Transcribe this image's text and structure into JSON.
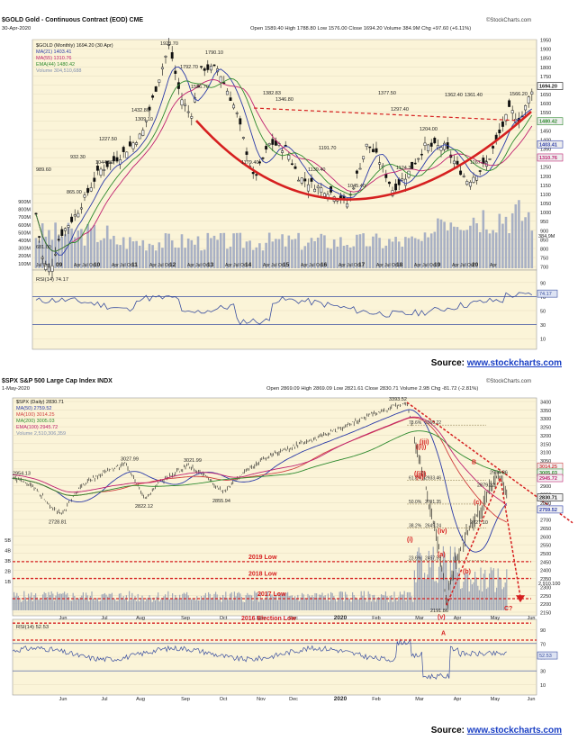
{
  "colors": {
    "panel_bg": "#f4ecd0",
    "chart_bg": "#fbf4d8",
    "up": "#111111",
    "down": "#111111",
    "red": "#d62020",
    "rsi": "#3a4fa0",
    "volume": "#a0a8b8",
    "ma50": "#2a3aa8",
    "ma200": "#2e8a2e",
    "ema": "#c02070"
  },
  "gold": {
    "title": "$GOLD Gold - Continuous Contract (EOD) CME",
    "date": "30-Apr-2020",
    "ohlc": "Open 1589.40  High 1788.80  Low 1576.00  Close 1694.20  Volume 384.9M  Chg +97.60 (+6.11%)",
    "legend": [
      "$GOLD (Monthly) 1694.20 (30 Apr)",
      "MA(21) 1403.41",
      "MA(55) 1310.76",
      "EMA(44) 1480.42",
      "Volume 304,510,688"
    ],
    "watermark": "©StockCharts.com",
    "price_labels": [
      "1923.70",
      "1792.70",
      "1790.10",
      "1526.70",
      "1432.80",
      "1309.10",
      "1227.50",
      "1044.80",
      "932.30",
      "865.00",
      "989.60",
      "681.00",
      "1382.83",
      "1346.80",
      "1179.40",
      "1191.70",
      "1139.40",
      "1045.40",
      "1377.50",
      "1297.40",
      "1362.40",
      "1361.40",
      "1204.00",
      "1124.30",
      "1167.10",
      "1566.20"
    ],
    "price_axis": [
      "1950",
      "1900",
      "1850",
      "1800",
      "1750",
      "1700",
      "1650",
      "1600",
      "1550",
      "1500",
      "1450",
      "1400",
      "1350",
      "1300",
      "1250",
      "1200",
      "1150",
      "1100",
      "1050",
      "1000",
      "950",
      "900",
      "850",
      "800",
      "750",
      "700"
    ],
    "price_tags": [
      "1694.20",
      "1403.41",
      "1310.76",
      "1480.42"
    ],
    "vol_axis": [
      "900M",
      "800M",
      "700M",
      "600M",
      "500M",
      "400M",
      "300M",
      "200M",
      "100M"
    ],
    "vol_tag": "384.9M",
    "x_labels": [
      "Jul Oct",
      "09",
      "Apr Jul Oct",
      "10",
      "Apr Jul Oct",
      "11",
      "Apr Jul Oct",
      "12",
      "Apr Jul Oct",
      "13",
      "Apr Jul Oct",
      "14",
      "Apr Jul Oct",
      "15",
      "Apr Jul Oct",
      "16",
      "Apr Jul Oct",
      "17",
      "Apr Jul Oct",
      "18",
      "Apr Jul Oct",
      "19",
      "Apr Jul Oct",
      "20",
      "Apr"
    ],
    "rsi_label": "RSI(14) 74.17",
    "rsi_axis": [
      "90",
      "70",
      "50",
      "30",
      "10"
    ],
    "rsi_tag": "74.17",
    "source_prefix": "Source: ",
    "source_link": "www.stockcharts.com"
  },
  "spx": {
    "title": "$SPX S&P 500 Large Cap Index INDX",
    "date": "1-May-2020",
    "ohlc": "Open 2869.09  High 2869.09  Low 2821.61  Close 2830.71  Volume 2.9B  Chg -81.72 (-2.81%)",
    "legend": [
      "$SPX (Daily) 2830.71",
      "MA(50) 2759.52",
      "MA(100) 3014.25",
      "MA(200) 3005.03",
      "EMA(100) 2945.72",
      "Volume 2,510,306,359"
    ],
    "watermark": "©StockCharts.com",
    "price_labels": [
      "2954.13",
      "3027.99",
      "3021.99",
      "2822.12",
      "2855.94",
      "2728.81",
      "3393.52",
      "2191.86",
      "2879.22",
      "2954.86",
      "2727.10"
    ],
    "fib_labels": [
      "61.8%",
      "50.0%",
      "38.2%",
      "23.6%",
      "78.6%"
    ],
    "fib_values": [
      "2933.46",
      "2791.35",
      "2649.24",
      "2457.59",
      "3260.22"
    ],
    "price_axis": [
      "3400",
      "3350",
      "3300",
      "3250",
      "3200",
      "3150",
      "3100",
      "3050",
      "3000",
      "2950",
      "2900",
      "2850",
      "2800",
      "2750",
      "2700",
      "2650",
      "2600",
      "2550",
      "2500",
      "2450",
      "2400",
      "2350",
      "2300",
      "2250",
      "2200",
      "2150"
    ],
    "price_tags": [
      "3014.25",
      "3005.03",
      "2945.72",
      "2830.71",
      "2759.52"
    ],
    "vol_axis": [
      "5B",
      "4B",
      "3B",
      "2B",
      "1B"
    ],
    "vol_tag": "2.910.100",
    "waves": [
      "(i)",
      "(ii)",
      "(iii)",
      "(iv)",
      "(v)",
      "(a)",
      "(b)",
      "((i))",
      "((ii))",
      "(c)",
      "B",
      "C?"
    ],
    "support_labels": [
      "2019 Low",
      "2018 Low",
      "2017 Low",
      "2016 Election Low"
    ],
    "x_labels": [
      "Jun",
      "Jul",
      "Aug",
      "Sep",
      "Oct",
      "Nov",
      "Dec",
      "2020",
      "Feb",
      "Mar",
      "Apr",
      "May",
      "Jun"
    ],
    "rsi_label": "RSI(14) 52.53",
    "rsi_axis": [
      "90",
      "70",
      "50",
      "30",
      "10"
    ],
    "rsi_tag": "52.53",
    "rsi_marker": "A",
    "source_prefix": "Source: ",
    "source_link": "www.stockcharts.com"
  },
  "chart_data": [
    {
      "type": "line",
      "title": "$GOLD Gold - Continuous Contract (EOD) CME",
      "x": [
        "2008-07",
        "2009-01",
        "2010-01",
        "2011-01",
        "2011-09",
        "2012-01",
        "2012-10",
        "2013-06",
        "2014-01",
        "2014-11",
        "2015-12",
        "2016-07",
        "2016-12",
        "2017-09",
        "2018-01",
        "2018-08",
        "2019-01",
        "2019-05",
        "2019-09",
        "2020-01",
        "2020-04"
      ],
      "series": [
        {
          "name": "$GOLD (Monthly) 1694.20 (30 Apr)",
          "values": [
            989.6,
            865,
            1227.5,
            1432.8,
            1923.7,
            1792.7,
            1790.1,
            1179.4,
            1382.83,
            1139.4,
            1045.4,
            1377.5,
            1124.3,
            1362.4,
            1361.4,
            1204,
            1297.4,
            1167.1,
            1566.2,
            1566.2,
            1694.2
          ]
        }
      ],
      "ylim": [
        681,
        1950
      ]
    },
    {
      "type": "line",
      "title": "$SPX S&P 500 Large Cap Index INDX",
      "x": [
        "2019-05-30",
        "2019-06-03",
        "2019-07-26",
        "2019-08-05",
        "2019-09-12",
        "2019-10-03",
        "2020-02-19",
        "2020-03-23",
        "2020-04-17",
        "2020-04-29",
        "2020-05-01"
      ],
      "series": [
        {
          "name": "$SPX (Daily) 2830.71",
          "values": [
            2728.81,
            2728.81,
            3027.99,
            2822.12,
            3021.99,
            2855.94,
            3393.52,
            2191.86,
            2879.22,
            2954.86,
            2830.71
          ]
        }
      ],
      "ylim": [
        2150,
        3400
      ]
    }
  ]
}
